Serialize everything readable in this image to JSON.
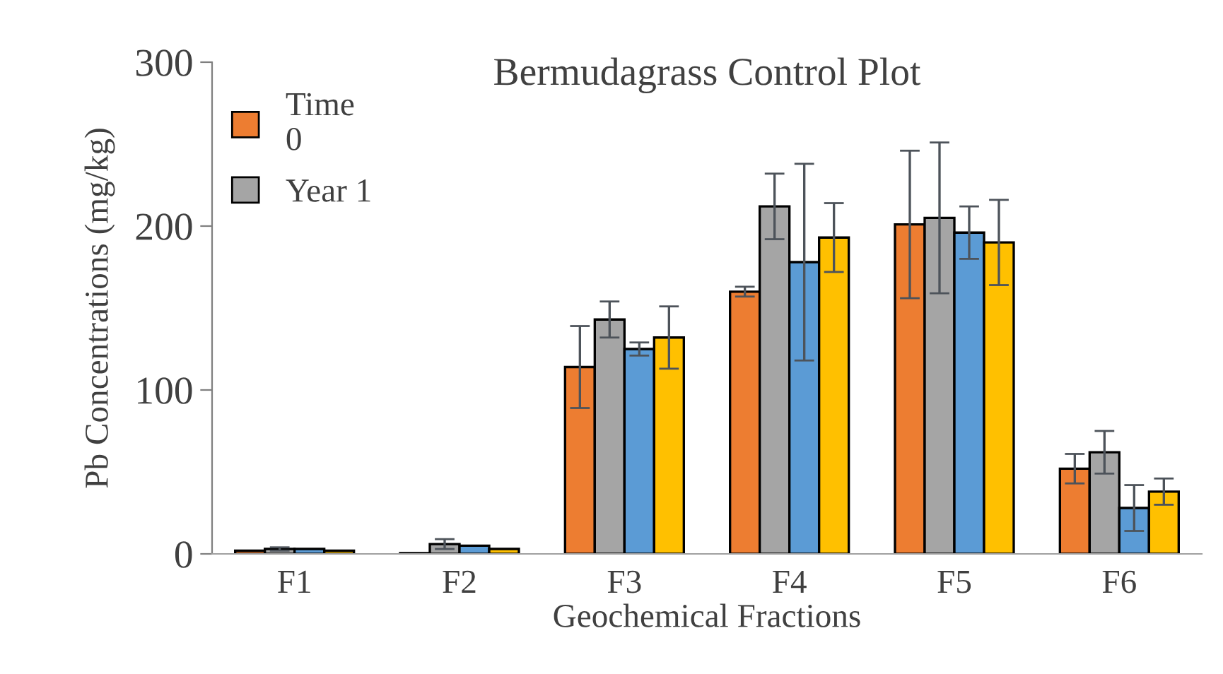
{
  "chart_data": {
    "type": "bar",
    "title": "Bermudagrass Control Plot",
    "xlabel": "Geochemical Fractions",
    "ylabel": "Pb Concentrations (mg/kg)",
    "categories": [
      "F1",
      "F2",
      "F3",
      "F4",
      "F5",
      "F6"
    ],
    "series": [
      {
        "name": "Time\n0",
        "color": "#ed7d31",
        "values": [
          2,
          0.5,
          114,
          160,
          201,
          52
        ],
        "errors": [
          null,
          null,
          25,
          3,
          45,
          9
        ]
      },
      {
        "name": "Year 1",
        "color": "#a5a5a5",
        "values": [
          3,
          6,
          143,
          212,
          205,
          62
        ],
        "errors": [
          1,
          3,
          11,
          20,
          46,
          13
        ]
      },
      {
        "color": "#5b9bd5",
        "values": [
          3,
          5,
          125,
          178,
          196,
          28
        ],
        "errors": [
          null,
          null,
          4,
          60,
          16,
          14
        ]
      },
      {
        "color": "#ffc000",
        "values": [
          2,
          3,
          132,
          193,
          190,
          38
        ],
        "errors": [
          null,
          null,
          19,
          21,
          26,
          8
        ]
      }
    ],
    "ylim": [
      0,
      300
    ],
    "yticks": [
      0,
      100,
      200,
      300
    ],
    "grid": false,
    "legend": "top left"
  }
}
